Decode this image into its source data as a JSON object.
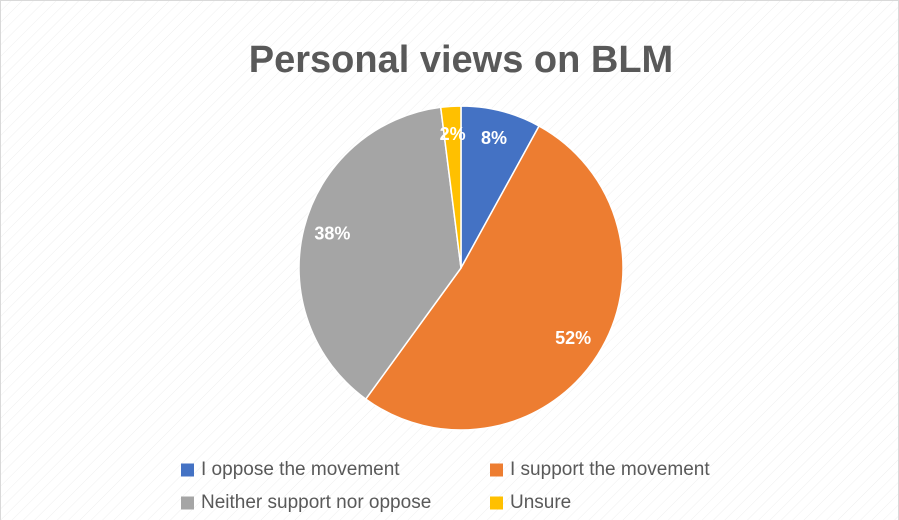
{
  "chart_data": {
    "type": "pie",
    "title": "Personal views on BLM",
    "categories": [
      "I oppose the movement",
      "I support the movement",
      "Neither support nor oppose",
      "Unsure"
    ],
    "values": [
      8,
      52,
      38,
      2
    ],
    "value_labels": [
      "8%",
      "52%",
      "38%",
      "2%"
    ],
    "colors": [
      "#4472c4",
      "#ed7d31",
      "#a5a5a5",
      "#ffc000"
    ],
    "legend": "bottom"
  }
}
